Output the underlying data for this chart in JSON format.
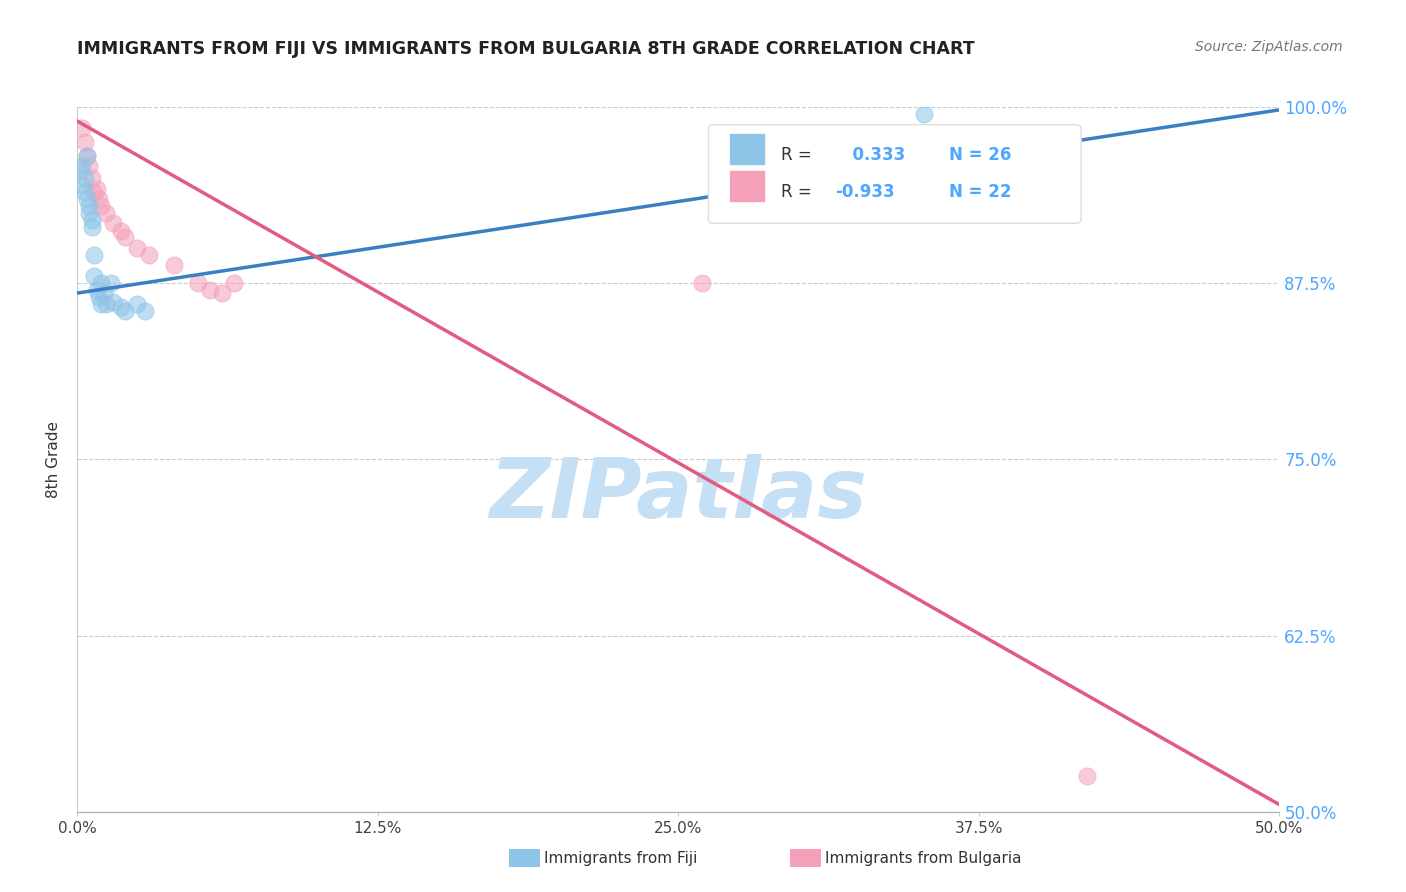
{
  "title": "IMMIGRANTS FROM FIJI VS IMMIGRANTS FROM BULGARIA 8TH GRADE CORRELATION CHART",
  "source": "Source: ZipAtlas.com",
  "ylabel": "8th Grade",
  "xlim": [
    0.0,
    0.5
  ],
  "ylim": [
    0.5,
    1.0
  ],
  "xtick_labels": [
    "0.0%",
    "12.5%",
    "25.0%",
    "37.5%",
    "50.0%"
  ],
  "xtick_vals": [
    0.0,
    0.125,
    0.25,
    0.375,
    0.5
  ],
  "ytick_labels": [
    "50.0%",
    "62.5%",
    "75.0%",
    "87.5%",
    "100.0%"
  ],
  "ytick_vals": [
    0.5,
    0.625,
    0.75,
    0.875,
    1.0
  ],
  "fiji_color": "#8dc4e8",
  "bulgaria_color": "#f4a0b8",
  "fiji_line_color": "#3a7fc1",
  "bulgaria_line_color": "#e05c80",
  "fiji_R": 0.333,
  "fiji_N": 26,
  "bulgaria_R": -0.933,
  "bulgaria_N": 22,
  "fiji_scatter_x": [
    0.001,
    0.002,
    0.002,
    0.003,
    0.003,
    0.004,
    0.004,
    0.005,
    0.005,
    0.006,
    0.006,
    0.007,
    0.007,
    0.008,
    0.009,
    0.01,
    0.01,
    0.011,
    0.012,
    0.014,
    0.015,
    0.018,
    0.02,
    0.025,
    0.028,
    0.352
  ],
  "fiji_scatter_y": [
    0.955,
    0.958,
    0.945,
    0.94,
    0.95,
    0.935,
    0.965,
    0.93,
    0.925,
    0.92,
    0.915,
    0.895,
    0.88,
    0.87,
    0.865,
    0.86,
    0.875,
    0.868,
    0.86,
    0.875,
    0.862,
    0.858,
    0.855,
    0.86,
    0.855,
    0.995
  ],
  "bulgaria_scatter_x": [
    0.002,
    0.003,
    0.004,
    0.005,
    0.006,
    0.007,
    0.008,
    0.009,
    0.01,
    0.012,
    0.015,
    0.018,
    0.02,
    0.025,
    0.03,
    0.04,
    0.05,
    0.055,
    0.06,
    0.065,
    0.26,
    0.42
  ],
  "bulgaria_scatter_y": [
    0.985,
    0.975,
    0.965,
    0.958,
    0.95,
    0.94,
    0.942,
    0.935,
    0.93,
    0.925,
    0.918,
    0.912,
    0.908,
    0.9,
    0.895,
    0.888,
    0.875,
    0.87,
    0.868,
    0.875,
    0.875,
    0.525
  ],
  "fiji_line_x0": 0.0,
  "fiji_line_y0": 0.868,
  "fiji_line_x1": 0.5,
  "fiji_line_y1": 0.998,
  "bulgaria_line_x0": 0.0,
  "bulgaria_line_y0": 0.99,
  "bulgaria_line_x1": 0.5,
  "bulgaria_line_y1": 0.505,
  "grid_color": "#cccccc",
  "watermark_color": "#c5dff5",
  "fiji_label": "Immigrants from Fiji",
  "bulgaria_label": "Immigrants from Bulgaria"
}
